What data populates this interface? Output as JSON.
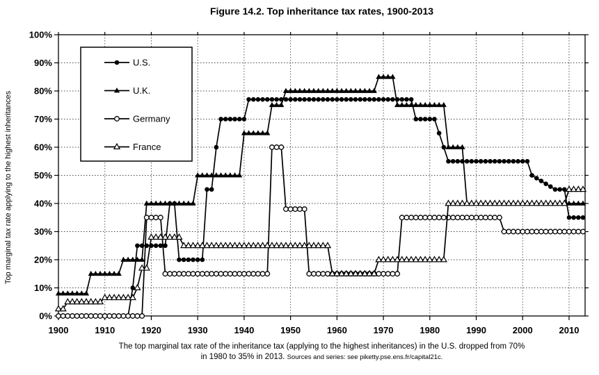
{
  "title": "Figure 14.2. Top inheritance tax rates, 1900-2013",
  "y_axis": {
    "label": "Top marginal tax rate applying to the highest inheritances",
    "ticks": [
      "0%",
      "10%",
      "20%",
      "30%",
      "40%",
      "50%",
      "60%",
      "70%",
      "80%",
      "90%",
      "100%"
    ]
  },
  "x_axis": {
    "ticks": [
      "1900",
      "1910",
      "1920",
      "1930",
      "1940",
      "1950",
      "1960",
      "1970",
      "1980",
      "1990",
      "2000",
      "2010"
    ]
  },
  "legend": {
    "entries": [
      {
        "label": "U.S.",
        "marker": "filled-circle"
      },
      {
        "label": "U.K.",
        "marker": "filled-triangle"
      },
      {
        "label": "Germany",
        "marker": "open-circle"
      },
      {
        "label": "France",
        "marker": "open-triangle"
      }
    ]
  },
  "caption": {
    "line1": "The top marginal tax rate of the inheritance tax (applying to the highest inheritances) in the U.S. dropped from 70%",
    "line2_main": "in 1980 to 35% in 2013.",
    "line2_source": "Sources and series: see piketty.pse.ens.fr/capital21c."
  },
  "colors": {
    "series": "#000000",
    "grid": "#444444",
    "background": "#ffffff"
  },
  "chart_data": {
    "type": "line",
    "title": "Figure 14.2. Top inheritance tax rates, 1900-2013",
    "xlabel": "",
    "ylabel": "Top marginal tax rate applying to the highest inheritances",
    "x_range": [
      1900,
      2013
    ],
    "ylim": [
      0,
      100
    ],
    "y_tick_step": 10,
    "grid": "dotted, both axes, every decade / every 10%",
    "legend_position": "upper-left inside plot",
    "value_unit": "percent",
    "series": [
      {
        "name": "U.S.",
        "marker": "filled-circle",
        "segments_year_from_to_rate": [
          [
            1900,
            1915,
            0
          ],
          [
            1916,
            1916,
            10
          ],
          [
            1917,
            1923,
            25
          ],
          [
            1924,
            1925,
            40
          ],
          [
            1926,
            1931,
            20
          ],
          [
            1932,
            1933,
            45
          ],
          [
            1934,
            1934,
            60
          ],
          [
            1935,
            1940,
            70
          ],
          [
            1941,
            1976,
            77
          ],
          [
            1977,
            1981,
            70
          ],
          [
            1982,
            1982,
            65
          ],
          [
            1983,
            1983,
            60
          ],
          [
            1984,
            2001,
            55
          ],
          [
            2002,
            2002,
            50
          ],
          [
            2003,
            2003,
            49
          ],
          [
            2004,
            2004,
            48
          ],
          [
            2005,
            2005,
            47
          ],
          [
            2006,
            2006,
            46
          ],
          [
            2007,
            2009,
            45
          ],
          [
            2010,
            2013,
            35
          ]
        ]
      },
      {
        "name": "U.K.",
        "marker": "filled-triangle",
        "segments_year_from_to_rate": [
          [
            1900,
            1906,
            8
          ],
          [
            1907,
            1913,
            15
          ],
          [
            1914,
            1918,
            20
          ],
          [
            1919,
            1929,
            40
          ],
          [
            1930,
            1939,
            50
          ],
          [
            1940,
            1945,
            65
          ],
          [
            1946,
            1948,
            75
          ],
          [
            1949,
            1968,
            80
          ],
          [
            1969,
            1972,
            85
          ],
          [
            1973,
            1983,
            75
          ],
          [
            1984,
            1987,
            60
          ],
          [
            1988,
            2013,
            40
          ]
        ]
      },
      {
        "name": "Germany",
        "marker": "open-circle",
        "segments_year_from_to_rate": [
          [
            1900,
            1918,
            0
          ],
          [
            1919,
            1922,
            35
          ],
          [
            1923,
            1945,
            15
          ],
          [
            1946,
            1948,
            60
          ],
          [
            1949,
            1953,
            38
          ],
          [
            1954,
            1973,
            15
          ],
          [
            1974,
            1995,
            35
          ],
          [
            1996,
            2013,
            30
          ]
        ]
      },
      {
        "name": "France",
        "marker": "open-triangle",
        "segments_year_from_to_rate": [
          [
            1900,
            1901,
            2.5
          ],
          [
            1902,
            1909,
            5
          ],
          [
            1910,
            1916,
            6.5
          ],
          [
            1917,
            1917,
            10
          ],
          [
            1918,
            1919,
            17
          ],
          [
            1920,
            1926,
            28
          ],
          [
            1927,
            1958,
            25
          ],
          [
            1959,
            1968,
            15
          ],
          [
            1969,
            1983,
            20
          ],
          [
            1984,
            2009,
            40
          ],
          [
            2010,
            2013,
            45
          ]
        ]
      }
    ]
  }
}
